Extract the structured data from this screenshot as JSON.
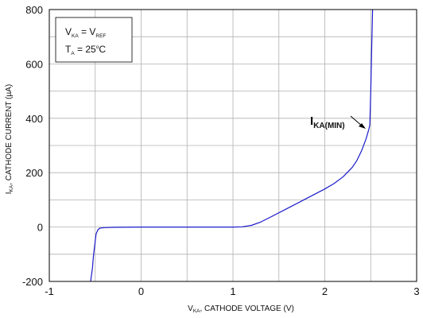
{
  "chart_data": {
    "type": "line",
    "xlabel": {
      "main": "V",
      "sub": "KA",
      "rest": ", CATHODE   VOLTAGE (V)"
    },
    "ylabel": {
      "main": "I",
      "sub": "KA",
      "rest": ", CATHODE   CURRENT (µA)"
    },
    "xlim": [
      -1,
      3
    ],
    "ylim": [
      -200,
      800
    ],
    "x_ticks": [
      -1,
      0,
      1,
      2,
      3
    ],
    "y_ticks": [
      -200,
      0,
      200,
      400,
      600,
      800
    ],
    "grid": true,
    "conditions": [
      {
        "a": "V",
        "a_sub": "KA",
        "mid": " = V",
        "b_sub": "REF"
      },
      {
        "a": "T",
        "a_sub": "A",
        "mid": " = 25",
        "sup": "o",
        "end": "C"
      }
    ],
    "annotation": {
      "main": "I",
      "sub": "KA(MIN)"
    },
    "line_color": "#1a1acc",
    "series": [
      {
        "x": [
          -0.55,
          -0.53,
          -0.52,
          -0.5,
          -0.49,
          -0.47,
          -0.45,
          -0.4,
          -0.3,
          0.0,
          0.5,
          1.0,
          1.1,
          1.2,
          1.3,
          1.4,
          1.6,
          1.8,
          2.0,
          2.1,
          2.2,
          2.3,
          2.35,
          2.4,
          2.45,
          2.48,
          2.49,
          2.5,
          2.51,
          2.52
        ],
        "y": [
          -200,
          -150,
          -110,
          -50,
          -25,
          -10,
          -4,
          -2,
          -1,
          0,
          0,
          0,
          1,
          6,
          18,
          35,
          70,
          105,
          140,
          160,
          185,
          220,
          245,
          280,
          325,
          360,
          375,
          500,
          650,
          800
        ]
      }
    ]
  }
}
